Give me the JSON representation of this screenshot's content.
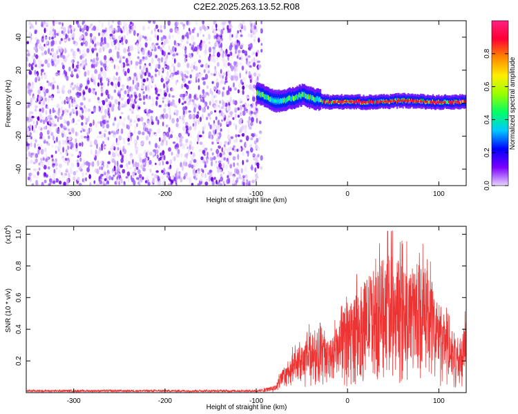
{
  "title": "C2E2.2025.263.13.52.R08",
  "chart_data": [
    {
      "type": "heatmap",
      "name": "spectrogram",
      "title": "C2E2.2025.263.13.52.R08",
      "xlabel": "Height of straight line (km)",
      "ylabel": "Frequency (Hz)",
      "xlim": [
        -352,
        130
      ],
      "ylim": [
        -50,
        50
      ],
      "xticks": [
        -300,
        -200,
        -100,
        0,
        100
      ],
      "xtick_labels": [
        "-300",
        "-200",
        "-100",
        "0",
        "100"
      ],
      "yticks": [
        -40,
        -20,
        0,
        20,
        40
      ],
      "ytick_labels": [
        "-40",
        "-20",
        "0",
        "20",
        "40"
      ],
      "noise_region_x": [
        -352,
        -98
      ],
      "ridge_center_hz": [
        {
          "x": -100,
          "y": 6
        },
        {
          "x": -90,
          "y": 4
        },
        {
          "x": -80,
          "y": 1
        },
        {
          "x": -70,
          "y": 2
        },
        {
          "x": -60,
          "y": 3
        },
        {
          "x": -50,
          "y": 5
        },
        {
          "x": -40,
          "y": 3
        },
        {
          "x": -30,
          "y": 1.5
        },
        {
          "x": -20,
          "y": 0.5
        },
        {
          "x": 0,
          "y": 1
        },
        {
          "x": 20,
          "y": 0.5
        },
        {
          "x": 40,
          "y": 1
        },
        {
          "x": 60,
          "y": 1.5
        },
        {
          "x": 80,
          "y": 1
        },
        {
          "x": 100,
          "y": 0.5
        },
        {
          "x": 130,
          "y": 1
        }
      ],
      "colorbar": {
        "label": "Normalized spectral amplitude",
        "range": [
          0,
          1
        ],
        "ticks": [
          0.0,
          0.2,
          0.4,
          0.6,
          0.8
        ],
        "tick_labels": [
          "0.0",
          "0.2",
          "0.4",
          "0.6",
          "0.8"
        ],
        "colors": [
          "#e8d6ff",
          "#7a00ff",
          "#0000ff",
          "#00c8ff",
          "#00ff66",
          "#99ff00",
          "#ffee00",
          "#ff8800",
          "#ff0033",
          "#ff2080"
        ]
      }
    },
    {
      "type": "line",
      "name": "snr",
      "xlabel": "Height of straight line (km)",
      "ylabel": "SNR (10 * v/v)",
      "scale_label": "(x10",
      "scale_exponent": "4",
      "xlim": [
        -352,
        130
      ],
      "ylim": [
        0,
        1.05
      ],
      "xticks": [
        -300,
        -200,
        -100,
        0,
        100
      ],
      "xtick_labels": [
        "-300",
        "-200",
        "-100",
        "0",
        "100"
      ],
      "yticks": [
        0.2,
        0.4,
        0.6,
        0.8,
        1.0
      ],
      "ytick_labels": [
        "0.2",
        "0.4",
        "0.6",
        "0.8",
        "1.0"
      ],
      "color": "#ee3333",
      "envelope": [
        {
          "x": -352,
          "y": 0.01
        },
        {
          "x": -100,
          "y": 0.01
        },
        {
          "x": -80,
          "y": 0.03
        },
        {
          "x": -65,
          "y": 0.15
        },
        {
          "x": -50,
          "y": 0.2
        },
        {
          "x": -40,
          "y": 0.27
        },
        {
          "x": -30,
          "y": 0.3
        },
        {
          "x": -20,
          "y": 0.22
        },
        {
          "x": -10,
          "y": 0.3
        },
        {
          "x": 0,
          "y": 0.4
        },
        {
          "x": 10,
          "y": 0.43
        },
        {
          "x": 20,
          "y": 0.5
        },
        {
          "x": 30,
          "y": 0.55
        },
        {
          "x": 40,
          "y": 0.6
        },
        {
          "x": 50,
          "y": 0.6
        },
        {
          "x": 60,
          "y": 0.58
        },
        {
          "x": 70,
          "y": 0.55
        },
        {
          "x": 85,
          "y": 0.55
        },
        {
          "x": 95,
          "y": 0.45
        },
        {
          "x": 105,
          "y": 0.35
        },
        {
          "x": 115,
          "y": 0.28
        },
        {
          "x": 125,
          "y": 0.2
        },
        {
          "x": 130,
          "y": 0.45
        }
      ],
      "peak": {
        "x": 44,
        "y": 1.02
      }
    }
  ]
}
